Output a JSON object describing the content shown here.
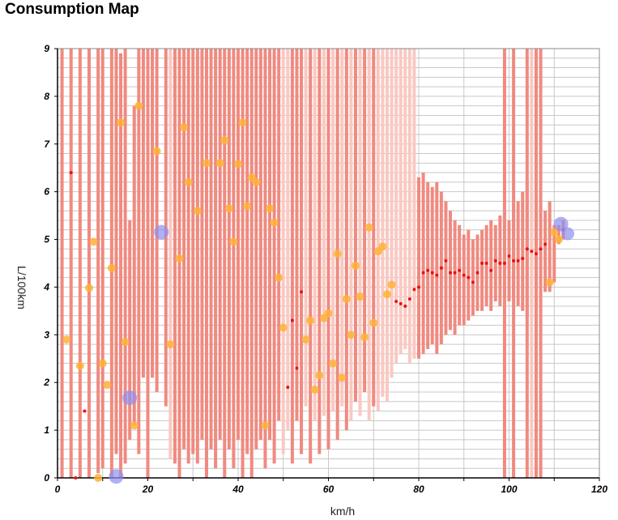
{
  "chart_data": {
    "type": "scatter",
    "title": "Consumption Map",
    "xlabel": "km/h",
    "ylabel": "L/100km",
    "xlim": [
      0,
      120
    ],
    "ylim": [
      0,
      9
    ],
    "x_ticks": [
      0,
      20,
      40,
      60,
      80,
      100,
      120
    ],
    "y_ticks": [
      0,
      1,
      2,
      3,
      4,
      5,
      6,
      7,
      8,
      9
    ],
    "grid": true,
    "colors": {
      "range_dark": "#f08a80",
      "range_light": "#f9c9c2",
      "mean_point": "#ee1111",
      "yellow_point": "#ffb236",
      "blue_point": "#8f8ff0",
      "grid": "#c8c8c8"
    },
    "range_bars": [
      {
        "x": 1,
        "low": 0,
        "high": 9,
        "tone": "dark"
      },
      {
        "x": 3,
        "low": 0,
        "high": 9,
        "tone": "dark"
      },
      {
        "x": 5,
        "low": 0,
        "high": 9,
        "tone": "dark"
      },
      {
        "x": 7,
        "low": 0,
        "high": 9,
        "tone": "dark"
      },
      {
        "x": 9,
        "low": 0.1,
        "high": 9,
        "tone": "dark"
      },
      {
        "x": 10,
        "low": 0.2,
        "high": 9,
        "tone": "dark"
      },
      {
        "x": 12,
        "low": 0,
        "high": 9,
        "tone": "dark"
      },
      {
        "x": 13,
        "low": 0.5,
        "high": 9,
        "tone": "dark"
      },
      {
        "x": 14,
        "low": 0,
        "high": 8.9,
        "tone": "dark"
      },
      {
        "x": 15,
        "low": 0.3,
        "high": 9,
        "tone": "dark"
      },
      {
        "x": 16,
        "low": 0.8,
        "high": 5.4,
        "tone": "dark"
      },
      {
        "x": 17,
        "low": 1.1,
        "high": 7.8,
        "tone": "dark"
      },
      {
        "x": 18,
        "low": 0.5,
        "high": 9,
        "tone": "dark"
      },
      {
        "x": 19,
        "low": 2.1,
        "high": 9,
        "tone": "dark"
      },
      {
        "x": 20,
        "low": 0,
        "high": 9,
        "tone": "dark"
      },
      {
        "x": 21,
        "low": 2.1,
        "high": 9,
        "tone": "dark"
      },
      {
        "x": 22,
        "low": 1.8,
        "high": 9,
        "tone": "dark"
      },
      {
        "x": 24,
        "low": 1.5,
        "high": 9,
        "tone": "dark"
      },
      {
        "x": 25,
        "low": 0.4,
        "high": 9,
        "tone": "light"
      },
      {
        "x": 26,
        "low": 0.3,
        "high": 9,
        "tone": "dark"
      },
      {
        "x": 27,
        "low": 0,
        "high": 9,
        "tone": "dark"
      },
      {
        "x": 28,
        "low": 0.6,
        "high": 9,
        "tone": "dark"
      },
      {
        "x": 29,
        "low": 0.3,
        "high": 9,
        "tone": "dark"
      },
      {
        "x": 30,
        "low": 0.5,
        "high": 9,
        "tone": "dark"
      },
      {
        "x": 31,
        "low": 0.3,
        "high": 9,
        "tone": "dark"
      },
      {
        "x": 32,
        "low": 0.8,
        "high": 9,
        "tone": "dark"
      },
      {
        "x": 33,
        "low": 0,
        "high": 9,
        "tone": "dark"
      },
      {
        "x": 34,
        "low": 0.6,
        "high": 9,
        "tone": "dark"
      },
      {
        "x": 35,
        "low": 0.2,
        "high": 9,
        "tone": "dark"
      },
      {
        "x": 36,
        "low": 0.8,
        "high": 9,
        "tone": "dark"
      },
      {
        "x": 37,
        "low": 0,
        "high": 9,
        "tone": "dark"
      },
      {
        "x": 38,
        "low": 0.6,
        "high": 9,
        "tone": "dark"
      },
      {
        "x": 39,
        "low": 0.2,
        "high": 9,
        "tone": "dark"
      },
      {
        "x": 40,
        "low": 0.8,
        "high": 9,
        "tone": "dark"
      },
      {
        "x": 41,
        "low": 0,
        "high": 9,
        "tone": "dark"
      },
      {
        "x": 42,
        "low": 0.5,
        "high": 9,
        "tone": "dark"
      },
      {
        "x": 43,
        "low": 0,
        "high": 9,
        "tone": "dark"
      },
      {
        "x": 44,
        "low": 0.6,
        "high": 9,
        "tone": "dark"
      },
      {
        "x": 45,
        "low": 0.8,
        "high": 9,
        "tone": "dark"
      },
      {
        "x": 46,
        "low": 0.2,
        "high": 9,
        "tone": "dark"
      },
      {
        "x": 47,
        "low": 0.8,
        "high": 9,
        "tone": "dark"
      },
      {
        "x": 48,
        "low": 0.3,
        "high": 9,
        "tone": "dark"
      },
      {
        "x": 49,
        "low": 1.2,
        "high": 9,
        "tone": "dark"
      },
      {
        "x": 50,
        "low": 0.5,
        "high": 9,
        "tone": "light"
      },
      {
        "x": 51,
        "low": 1.0,
        "high": 9,
        "tone": "light"
      },
      {
        "x": 52,
        "low": 0.3,
        "high": 9,
        "tone": "dark"
      },
      {
        "x": 53,
        "low": 1.2,
        "high": 9,
        "tone": "dark"
      },
      {
        "x": 54,
        "low": 0.5,
        "high": 9,
        "tone": "dark"
      },
      {
        "x": 55,
        "low": 1.5,
        "high": 9,
        "tone": "light"
      },
      {
        "x": 56,
        "low": 0.3,
        "high": 9,
        "tone": "dark"
      },
      {
        "x": 57,
        "low": 1.2,
        "high": 9,
        "tone": "light"
      },
      {
        "x": 58,
        "low": 0.5,
        "high": 9,
        "tone": "dark"
      },
      {
        "x": 59,
        "low": 1.3,
        "high": 9,
        "tone": "light"
      },
      {
        "x": 60,
        "low": 0.6,
        "high": 9,
        "tone": "dark"
      },
      {
        "x": 61,
        "low": 1.4,
        "high": 9,
        "tone": "light"
      },
      {
        "x": 62,
        "low": 0.8,
        "high": 9,
        "tone": "dark"
      },
      {
        "x": 63,
        "low": 1.5,
        "high": 9,
        "tone": "light"
      },
      {
        "x": 64,
        "low": 1.0,
        "high": 9,
        "tone": "dark"
      },
      {
        "x": 65,
        "low": 1.2,
        "high": 9,
        "tone": "light"
      },
      {
        "x": 66,
        "low": 1.6,
        "high": 9,
        "tone": "dark"
      },
      {
        "x": 67,
        "low": 1.3,
        "high": 9,
        "tone": "light"
      },
      {
        "x": 68,
        "low": 1.8,
        "high": 9,
        "tone": "dark"
      },
      {
        "x": 69,
        "low": 1.2,
        "high": 9,
        "tone": "light"
      },
      {
        "x": 70,
        "low": 1.5,
        "high": 9,
        "tone": "dark"
      },
      {
        "x": 71,
        "low": 1.4,
        "high": 9,
        "tone": "light"
      },
      {
        "x": 72,
        "low": 1.7,
        "high": 9,
        "tone": "light"
      },
      {
        "x": 73,
        "low": 1.6,
        "high": 9,
        "tone": "light"
      },
      {
        "x": 74,
        "low": 2.1,
        "high": 9,
        "tone": "light"
      },
      {
        "x": 75,
        "low": 2.4,
        "high": 9,
        "tone": "light"
      },
      {
        "x": 76,
        "low": 2.6,
        "high": 9,
        "tone": "light"
      },
      {
        "x": 77,
        "low": 2.7,
        "high": 9,
        "tone": "light"
      },
      {
        "x": 78,
        "low": 2.4,
        "high": 9,
        "tone": "light"
      },
      {
        "x": 79,
        "low": 2.5,
        "high": 9,
        "tone": "light"
      },
      {
        "x": 80,
        "low": 2.5,
        "high": 6.3,
        "tone": "dark"
      },
      {
        "x": 81,
        "low": 2.6,
        "high": 6.4,
        "tone": "dark"
      },
      {
        "x": 82,
        "low": 2.7,
        "high": 6.2,
        "tone": "dark"
      },
      {
        "x": 83,
        "low": 2.8,
        "high": 6.1,
        "tone": "dark"
      },
      {
        "x": 84,
        "low": 2.6,
        "high": 6.2,
        "tone": "dark"
      },
      {
        "x": 85,
        "low": 2.8,
        "high": 6.0,
        "tone": "dark"
      },
      {
        "x": 86,
        "low": 3.0,
        "high": 5.8,
        "tone": "dark"
      },
      {
        "x": 87,
        "low": 3.1,
        "high": 5.6,
        "tone": "dark"
      },
      {
        "x": 88,
        "low": 3.0,
        "high": 5.4,
        "tone": "dark"
      },
      {
        "x": 89,
        "low": 3.2,
        "high": 5.3,
        "tone": "dark"
      },
      {
        "x": 90,
        "low": 3.2,
        "high": 5.1,
        "tone": "dark"
      },
      {
        "x": 91,
        "low": 3.3,
        "high": 5.2,
        "tone": "dark"
      },
      {
        "x": 92,
        "low": 3.4,
        "high": 5.0,
        "tone": "dark"
      },
      {
        "x": 93,
        "low": 3.5,
        "high": 5.1,
        "tone": "dark"
      },
      {
        "x": 94,
        "low": 3.5,
        "high": 5.2,
        "tone": "dark"
      },
      {
        "x": 95,
        "low": 3.6,
        "high": 5.3,
        "tone": "dark"
      },
      {
        "x": 96,
        "low": 3.5,
        "high": 5.4,
        "tone": "dark"
      },
      {
        "x": 97,
        "low": 3.7,
        "high": 5.3,
        "tone": "dark"
      },
      {
        "x": 98,
        "low": 3.6,
        "high": 5.5,
        "tone": "dark"
      },
      {
        "x": 99,
        "low": 3.8,
        "high": 5.6,
        "tone": "dark"
      },
      {
        "x": 100,
        "low": 3.7,
        "high": 5.4,
        "tone": "dark"
      },
      {
        "x": 101,
        "low": 3.8,
        "high": 5.7,
        "tone": "dark"
      },
      {
        "x": 102,
        "low": 3.6,
        "high": 5.8,
        "tone": "dark"
      },
      {
        "x": 103,
        "low": 3.5,
        "high": 6.0,
        "tone": "dark"
      },
      {
        "x": 104,
        "low": 3.4,
        "high": 6.2,
        "tone": "dark"
      },
      {
        "x": 105,
        "low": 3.6,
        "high": 6.0,
        "tone": "dark"
      },
      {
        "x": 106,
        "low": 3.6,
        "high": 5.9,
        "tone": "dark"
      },
      {
        "x": 107,
        "low": 3.5,
        "high": 5.7,
        "tone": "dark"
      },
      {
        "x": 108,
        "low": 3.9,
        "high": 5.6,
        "tone": "dark"
      },
      {
        "x": 109,
        "low": 3.9,
        "high": 5.8,
        "tone": "dark"
      },
      {
        "x": 110,
        "low": 4.1,
        "high": 5.3,
        "tone": "dark"
      },
      {
        "x": 111,
        "low": 4.9,
        "high": 5.3,
        "tone": "dark"
      },
      {
        "x": 112,
        "low": 5.0,
        "high": 5.4,
        "tone": "dark"
      },
      {
        "x": 99,
        "low": 0,
        "high": 9,
        "tone": "dark"
      },
      {
        "x": 101,
        "low": 0,
        "high": 9,
        "tone": "dark"
      },
      {
        "x": 104,
        "low": 0,
        "high": 9,
        "tone": "dark"
      },
      {
        "x": 105,
        "low": 0,
        "high": 9,
        "tone": "light"
      },
      {
        "x": 106,
        "low": 0,
        "high": 9,
        "tone": "dark"
      },
      {
        "x": 107,
        "low": 0,
        "high": 9,
        "tone": "dark"
      }
    ],
    "mean_points": [
      {
        "x": 3,
        "y": 6.4
      },
      {
        "x": 4,
        "y": 0
      },
      {
        "x": 6,
        "y": 1.4
      },
      {
        "x": 51,
        "y": 1.9
      },
      {
        "x": 52,
        "y": 3.3
      },
      {
        "x": 53,
        "y": 2.3
      },
      {
        "x": 54,
        "y": 3.9
      },
      {
        "x": 75,
        "y": 3.7
      },
      {
        "x": 76,
        "y": 3.65
      },
      {
        "x": 77,
        "y": 3.6
      },
      {
        "x": 78,
        "y": 3.75
      },
      {
        "x": 79,
        "y": 3.95
      },
      {
        "x": 80,
        "y": 4.0
      },
      {
        "x": 81,
        "y": 4.3
      },
      {
        "x": 82,
        "y": 4.35
      },
      {
        "x": 83,
        "y": 4.3
      },
      {
        "x": 84,
        "y": 4.25
      },
      {
        "x": 85,
        "y": 4.4
      },
      {
        "x": 86,
        "y": 4.55
      },
      {
        "x": 87,
        "y": 4.3
      },
      {
        "x": 88,
        "y": 4.3
      },
      {
        "x": 89,
        "y": 4.35
      },
      {
        "x": 90,
        "y": 4.25
      },
      {
        "x": 91,
        "y": 4.2
      },
      {
        "x": 92,
        "y": 4.1
      },
      {
        "x": 93,
        "y": 4.3
      },
      {
        "x": 94,
        "y": 4.5
      },
      {
        "x": 95,
        "y": 4.5
      },
      {
        "x": 96,
        "y": 4.35
      },
      {
        "x": 97,
        "y": 4.55
      },
      {
        "x": 98,
        "y": 4.5
      },
      {
        "x": 99,
        "y": 4.5
      },
      {
        "x": 100,
        "y": 4.65
      },
      {
        "x": 101,
        "y": 4.55
      },
      {
        "x": 102,
        "y": 4.55
      },
      {
        "x": 103,
        "y": 4.6
      },
      {
        "x": 104,
        "y": 4.8
      },
      {
        "x": 105,
        "y": 4.75
      },
      {
        "x": 106,
        "y": 4.7
      },
      {
        "x": 107,
        "y": 4.8
      },
      {
        "x": 108,
        "y": 4.9
      },
      {
        "x": 112,
        "y": 5.2
      }
    ],
    "yellow_points": [
      {
        "x": 2,
        "y": 2.9
      },
      {
        "x": 5,
        "y": 2.35
      },
      {
        "x": 7,
        "y": 3.98
      },
      {
        "x": 8,
        "y": 4.95
      },
      {
        "x": 9,
        "y": 0
      },
      {
        "x": 10,
        "y": 2.4
      },
      {
        "x": 11,
        "y": 1.95
      },
      {
        "x": 12,
        "y": 4.4
      },
      {
        "x": 14,
        "y": 7.45
      },
      {
        "x": 15,
        "y": 2.85
      },
      {
        "x": 17,
        "y": 1.1
      },
      {
        "x": 18,
        "y": 7.8
      },
      {
        "x": 22,
        "y": 6.85
      },
      {
        "x": 25,
        "y": 2.8
      },
      {
        "x": 27,
        "y": 4.6
      },
      {
        "x": 28,
        "y": 7.35
      },
      {
        "x": 29,
        "y": 6.2
      },
      {
        "x": 31,
        "y": 5.6
      },
      {
        "x": 33,
        "y": 6.6
      },
      {
        "x": 36,
        "y": 6.6
      },
      {
        "x": 37,
        "y": 7.08
      },
      {
        "x": 38,
        "y": 5.65
      },
      {
        "x": 39,
        "y": 4.95
      },
      {
        "x": 40,
        "y": 6.58
      },
      {
        "x": 41,
        "y": 7.45
      },
      {
        "x": 42,
        "y": 5.7
      },
      {
        "x": 43,
        "y": 6.3
      },
      {
        "x": 44,
        "y": 6.2
      },
      {
        "x": 46,
        "y": 1.1
      },
      {
        "x": 47,
        "y": 5.65
      },
      {
        "x": 48,
        "y": 5.35
      },
      {
        "x": 49,
        "y": 4.2
      },
      {
        "x": 50,
        "y": 3.15
      },
      {
        "x": 55,
        "y": 2.9
      },
      {
        "x": 56,
        "y": 3.3
      },
      {
        "x": 57,
        "y": 1.85
      },
      {
        "x": 58,
        "y": 2.15
      },
      {
        "x": 59,
        "y": 3.35
      },
      {
        "x": 60,
        "y": 3.45
      },
      {
        "x": 61,
        "y": 2.4
      },
      {
        "x": 62,
        "y": 4.7
      },
      {
        "x": 63,
        "y": 2.1
      },
      {
        "x": 64,
        "y": 3.75
      },
      {
        "x": 65,
        "y": 3.0
      },
      {
        "x": 66,
        "y": 4.45
      },
      {
        "x": 67,
        "y": 3.8
      },
      {
        "x": 68,
        "y": 2.95
      },
      {
        "x": 69,
        "y": 5.25
      },
      {
        "x": 70,
        "y": 3.25
      },
      {
        "x": 71,
        "y": 4.75
      },
      {
        "x": 72,
        "y": 4.85
      },
      {
        "x": 73,
        "y": 3.85
      },
      {
        "x": 74,
        "y": 4.05
      },
      {
        "x": 109,
        "y": 4.1
      },
      {
        "x": 110,
        "y": 5.15
      },
      {
        "x": 111,
        "y": 5.0
      }
    ],
    "blue_points": [
      {
        "x": 13,
        "y": 0.03,
        "r": 9
      },
      {
        "x": 16,
        "y": 1.68,
        "r": 9
      },
      {
        "x": 23,
        "y": 5.15,
        "r": 9
      },
      {
        "x": 111.5,
        "y": 5.32,
        "r": 9
      },
      {
        "x": 113,
        "y": 5.12,
        "r": 8
      }
    ]
  }
}
